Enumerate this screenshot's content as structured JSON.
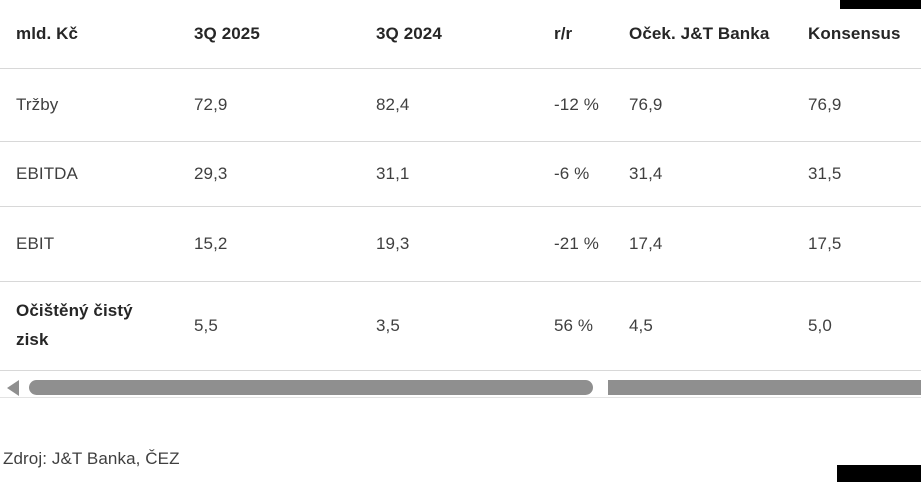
{
  "colors": {
    "text": "#3f3f3f",
    "heading_text": "#262626",
    "divider": "#d8d8d8",
    "scrollbar": "#8f8f8f",
    "cropped_blocks": "#000000",
    "background": "#ffffff"
  },
  "table": {
    "columns": [
      "mld. Kč",
      "3Q 2025",
      "3Q 2024",
      "r/r",
      "Oček. J&T Banka",
      "Konsensus"
    ],
    "rows": [
      {
        "label": "Tržby",
        "values": [
          "72,9",
          "82,4",
          "-12 %",
          "76,9",
          "76,9"
        ]
      },
      {
        "label": "EBITDA",
        "values": [
          "29,3",
          "31,1",
          "-6 %",
          "31,4",
          "31,5"
        ]
      },
      {
        "label": "EBIT",
        "values": [
          "15,2",
          "19,3",
          "-21 %",
          "17,4",
          "17,5"
        ]
      },
      {
        "label": "Očištěný čistý zisk",
        "values": [
          "5,5",
          "3,5",
          "56 %",
          "4,5",
          "5,0"
        ]
      }
    ]
  },
  "scrollbar": {
    "orientation": "horizontal",
    "left_arrow": "scroll-left"
  },
  "source_note": "Zdroj: J&T Banka, ČEZ"
}
